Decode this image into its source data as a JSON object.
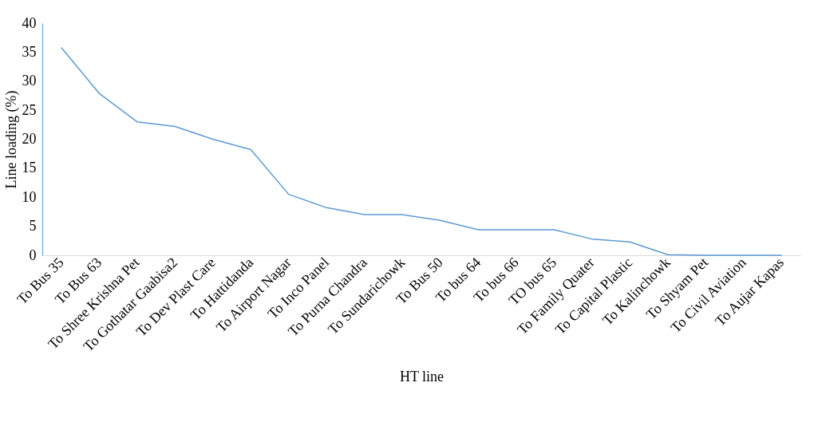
{
  "chart_data": {
    "type": "line",
    "xlabel": "HT line",
    "ylabel": "Line loading (%)",
    "categories": [
      "To Bus 35",
      "To Bus 63",
      "To Shree Krishna Pet",
      "To Gothatar Gaabisa2",
      "To Dev Plast Care",
      "To Hattidanda",
      "To Airport Nagar",
      "To Inco Panel",
      "To Purna Chandra",
      "To Sundarichowk",
      "To Bus 50",
      "To bus 64",
      "To bus 66",
      "TO bus 65",
      "To Family Quater",
      "To Capital Plastic",
      "To Kalinchowk",
      "To Shyam Pet",
      "To Civil Aviation",
      "To Aujar Kapas"
    ],
    "series": [
      {
        "color": "#5b9bd5",
        "values": [
          35.8,
          27.9,
          23,
          22.2,
          20,
          18.2,
          10.5,
          8.2,
          7,
          7,
          6,
          4.4,
          4.4,
          4.4,
          2.8,
          2.3,
          0.1,
          0,
          0,
          0
        ]
      }
    ],
    "ylim": [
      0,
      40
    ],
    "yticks": [
      0,
      5,
      10,
      15,
      20,
      25,
      30,
      35,
      40
    ],
    "grid": false,
    "marker": "none",
    "line_style": "solid"
  }
}
